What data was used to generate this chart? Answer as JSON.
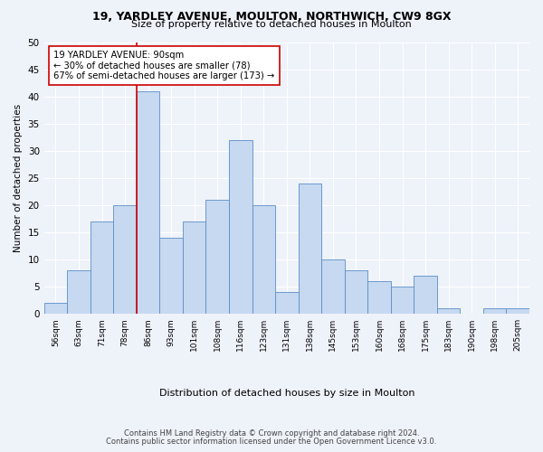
{
  "title1": "19, YARDLEY AVENUE, MOULTON, NORTHWICH, CW9 8GX",
  "title2": "Size of property relative to detached houses in Moulton",
  "xlabel": "Distribution of detached houses by size in Moulton",
  "ylabel": "Number of detached properties",
  "categories": [
    "56sqm",
    "63sqm",
    "71sqm",
    "78sqm",
    "86sqm",
    "93sqm",
    "101sqm",
    "108sqm",
    "116sqm",
    "123sqm",
    "131sqm",
    "138sqm",
    "145sqm",
    "153sqm",
    "160sqm",
    "168sqm",
    "175sqm",
    "183sqm",
    "190sqm",
    "198sqm",
    "205sqm"
  ],
  "values": [
    2,
    8,
    17,
    20,
    41,
    14,
    17,
    21,
    32,
    20,
    4,
    24,
    10,
    8,
    6,
    5,
    7,
    1,
    0,
    1,
    1
  ],
  "bar_color": "#c6d9f0",
  "bar_edge_color": "#5b8dc8",
  "vline_color": "#cc0000",
  "vline_x_index": 4,
  "annotation_text": "19 YARDLEY AVENUE: 90sqm\n← 30% of detached houses are smaller (78)\n67% of semi-detached houses are larger (173) →",
  "annotation_box_color": "#ffffff",
  "annotation_box_edge": "#cc0000",
  "ylim": [
    0,
    50
  ],
  "yticks": [
    0,
    5,
    10,
    15,
    20,
    25,
    30,
    35,
    40,
    45,
    50
  ],
  "footer1": "Contains HM Land Registry data © Crown copyright and database right 2024.",
  "footer2": "Contains public sector information licensed under the Open Government Licence v3.0.",
  "bg_color": "#eef2f9",
  "grid_color": "#ffffff"
}
